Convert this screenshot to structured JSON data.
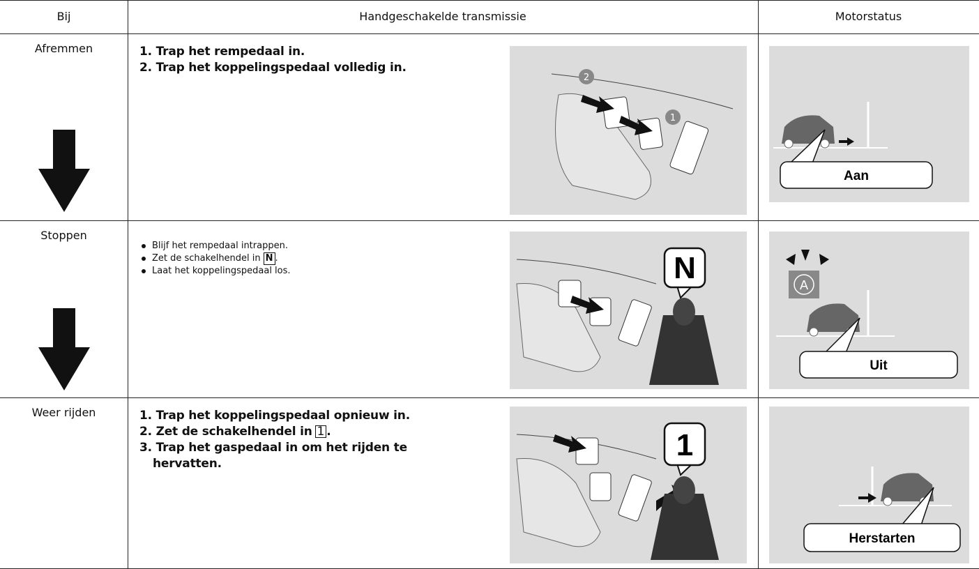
{
  "header": {
    "columns": [
      "Bij",
      "Handgeschakelde transmissie",
      "Motorstatus"
    ]
  },
  "rows": [
    {
      "stage": "Afremmen",
      "steps": [
        {
          "text": "1. Trap het rempedaal in."
        },
        {
          "text": "2. Trap het koppelingspedaal volledig in."
        }
      ],
      "pedal_badges": [
        "2",
        "1"
      ],
      "status": "Aan"
    },
    {
      "stage": "Stoppen",
      "steps": [
        {
          "text": "Blijf het rempedaal intrappen."
        },
        {
          "text": "Zet de schakelhendel in",
          "key": "N",
          "end": "."
        },
        {
          "text": "Laat het koppelingspedaal los."
        }
      ],
      "gear_callout": "N",
      "indicator": "A",
      "status": "Uit"
    },
    {
      "stage": "Weer rijden",
      "steps": [
        {
          "text": "1. Trap het koppelingspedaal opnieuw in."
        },
        {
          "text": "2. Zet de schakelhendel in",
          "key": "1",
          "end": "."
        },
        {
          "text": "3. Trap het gaspedaal in om het rijden te hervatten."
        }
      ],
      "gear_callout": "1",
      "status": "Herstarten"
    }
  ]
}
